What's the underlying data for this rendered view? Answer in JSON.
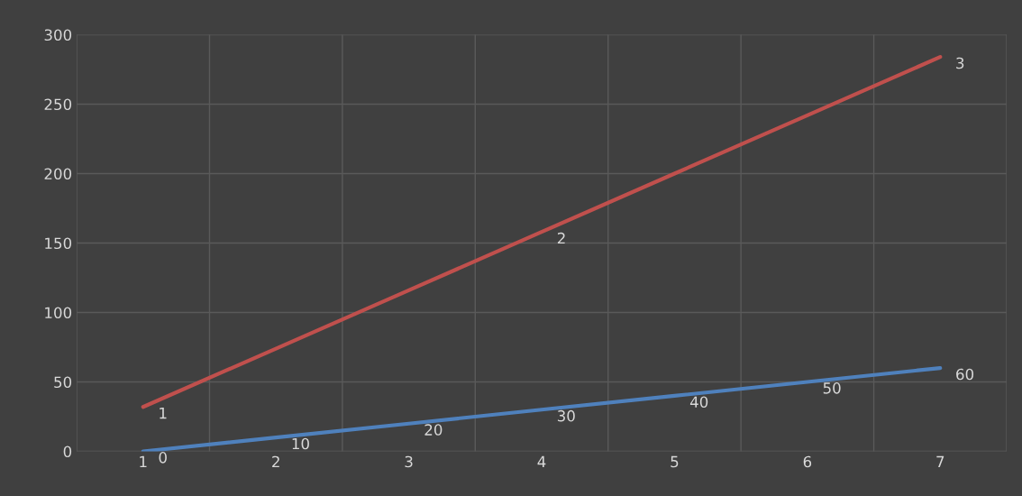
{
  "chart_data": {
    "type": "line",
    "categories": [
      "1",
      "2",
      "3",
      "4",
      "5",
      "6",
      "7"
    ],
    "series": [
      {
        "color": "#c0504d",
        "values": [
          32,
          74,
          116,
          158,
          200,
          242,
          284
        ]
      },
      {
        "color": "#4f81bd",
        "values": [
          0,
          10,
          20,
          30,
          40,
          50,
          60
        ],
        "value_labels": [
          "0",
          "10",
          "20",
          "30",
          "40",
          "50",
          "60"
        ]
      }
    ],
    "annotations": [
      {
        "text": "1",
        "x": "1",
        "y": 32
      },
      {
        "text": "2",
        "x": "4",
        "y": 158
      },
      {
        "text": "3",
        "x": "7",
        "y": 284
      }
    ],
    "ylim": [
      0,
      300
    ],
    "yticks": [
      0,
      50,
      100,
      150,
      200,
      250,
      300
    ],
    "grid": true,
    "marker": "none",
    "line_style": "solid"
  }
}
